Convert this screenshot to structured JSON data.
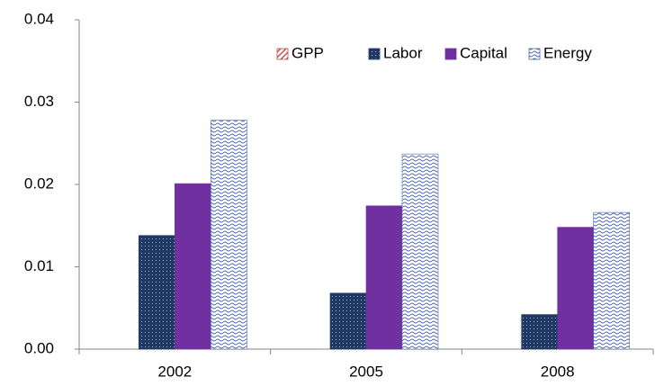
{
  "chart_data": {
    "type": "bar",
    "categories": [
      "2002",
      "2005",
      "2008"
    ],
    "series": [
      {
        "name": "GPP",
        "color": "#c0504d",
        "values": [
          0,
          0,
          0
        ]
      },
      {
        "name": "Labor",
        "color": "#1f3864",
        "values": [
          0.0138,
          0.0068,
          0.0042
        ]
      },
      {
        "name": "Capital",
        "color": "#7030a0",
        "values": [
          0.0201,
          0.0174,
          0.0148
        ]
      },
      {
        "name": "Energy",
        "color": "#4a66ac",
        "values": [
          0.0278,
          0.0237,
          0.0166
        ]
      }
    ],
    "ylim": [
      0,
      0.04
    ],
    "yticks": [
      {
        "value": 0,
        "label": "0.00"
      },
      0.01,
      0.02,
      0.03,
      0.04
    ],
    "grid": false,
    "legend": "top-right"
  }
}
